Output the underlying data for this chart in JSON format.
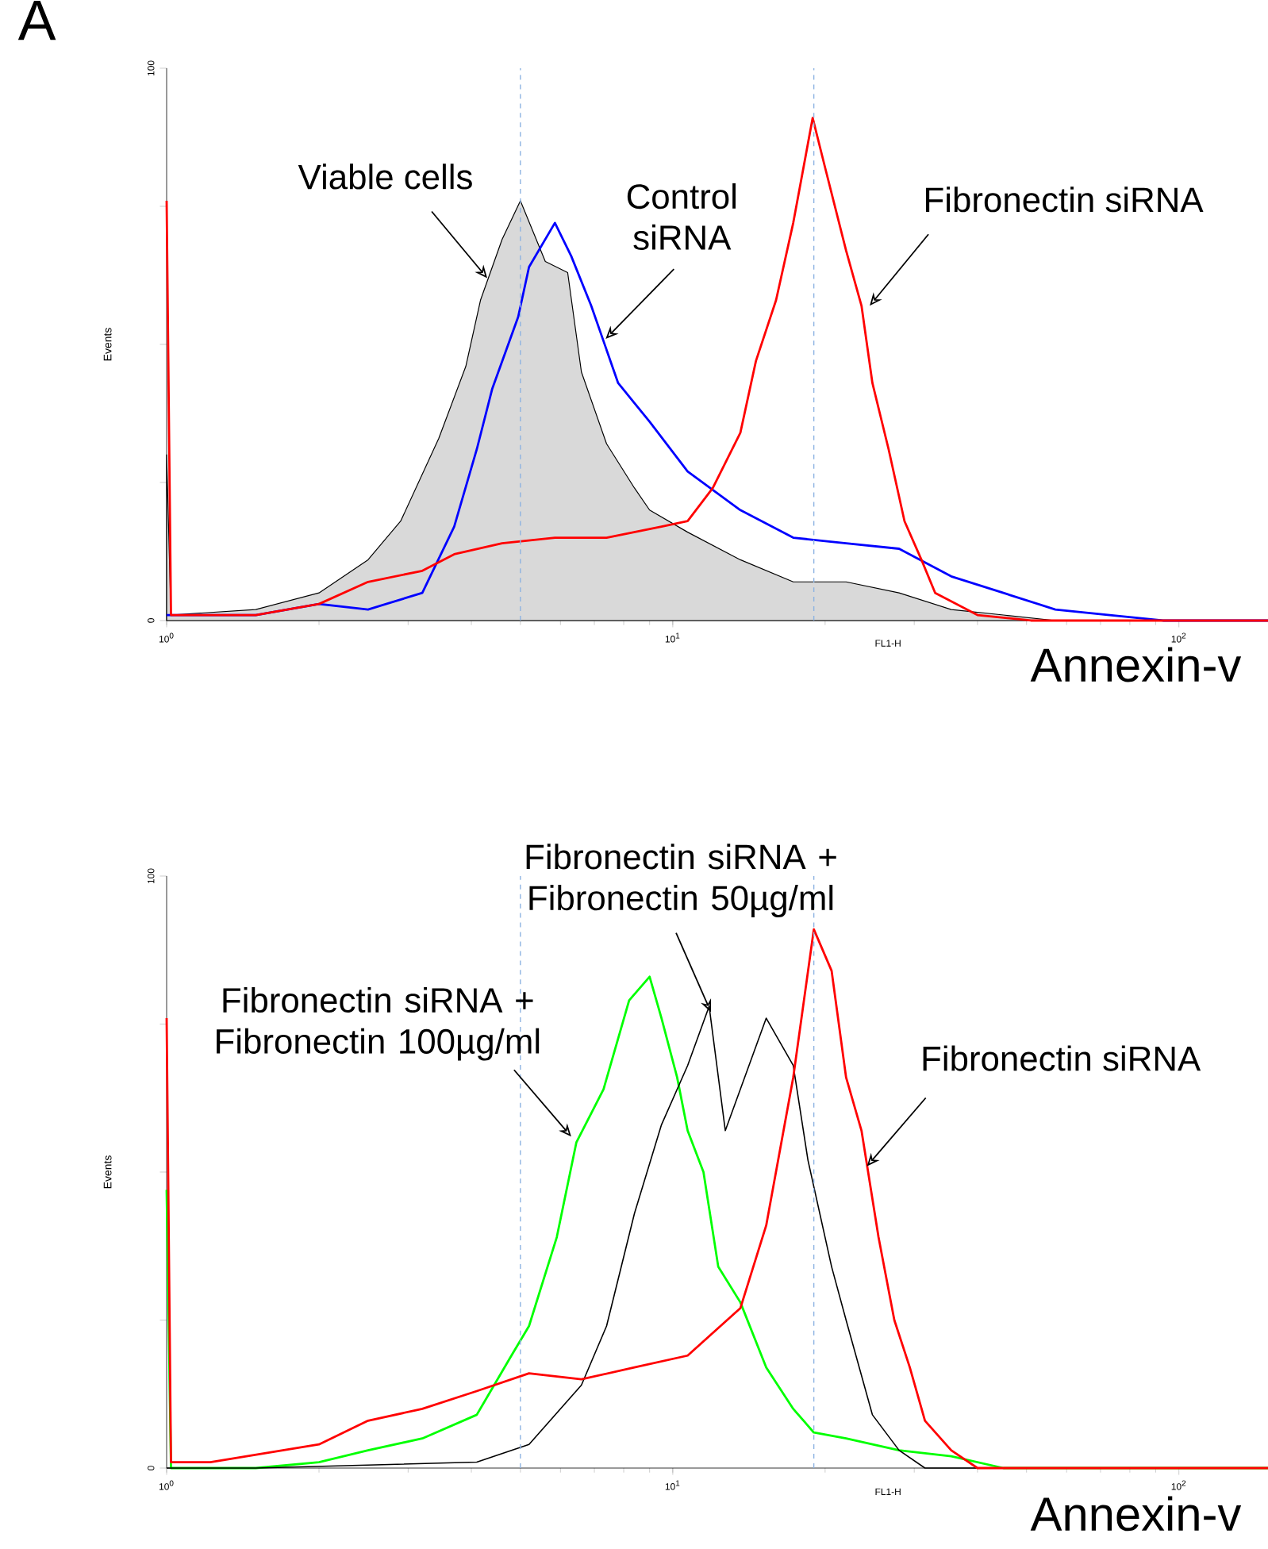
{
  "chart_data": [
    {
      "type": "line",
      "title": "A",
      "xlabel": "FL1-H",
      "ylabel": "Events",
      "log": "x",
      "xlim": [
        1,
        150
      ],
      "ylim": [
        0,
        100
      ],
      "xticks": [
        {
          "value": 1,
          "label": "10$^{0}$"
        },
        {
          "value": 10,
          "label": "10$^{1}$"
        },
        {
          "value": 100,
          "label": "10$^{2}$"
        }
      ],
      "yticks": [
        0,
        {
          "value": 25,
          "label": null
        },
        {
          "value": 50,
          "label": null
        },
        {
          "value": 75,
          "label": null
        },
        100
      ],
      "series": [
        {
          "type": "area",
          "color": "#000000",
          "x": [
            1,
            1.02,
            1.5,
            2,
            2.5,
            2.9,
            3.45,
            3.9,
            4.17,
            4.6,
            5,
            5.6,
            6.2,
            6.6,
            7.4,
            8.4,
            9,
            10.7,
            13.6,
            17.3,
            22,
            28,
            35.5,
            45,
            57,
            150
          ],
          "values": [
            30,
            1,
            2,
            5,
            11,
            18,
            33,
            46,
            58,
            69,
            76,
            65,
            63,
            45,
            32,
            24,
            20,
            16,
            11,
            7,
            7,
            5,
            2,
            1,
            0,
            0
          ]
        },
        {
          "type": "line",
          "color": "#0000ff",
          "x": [
            1,
            1.02,
            1.5,
            2,
            2.5,
            3.2,
            3.7,
            4.1,
            4.4,
            4.95,
            5.2,
            5.85,
            6.3,
            6.9,
            7.8,
            9,
            10.7,
            13.6,
            17.3,
            22,
            28,
            35.5,
            45,
            57,
            73,
            93,
            150
          ],
          "values": [
            1,
            1,
            1,
            3,
            2,
            5,
            17,
            31,
            42,
            55,
            64,
            72,
            66,
            57,
            43,
            36,
            27,
            20,
            15,
            14,
            13,
            8,
            5,
            2,
            1,
            0,
            0
          ]
        },
        {
          "type": "line",
          "color": "#ff0000",
          "x": [
            1,
            1.02,
            1.5,
            2,
            2.5,
            3.2,
            3.7,
            4.6,
            5.85,
            7.4,
            9.5,
            10.7,
            12,
            13.6,
            14.6,
            16,
            17.3,
            18.9,
            20,
            22,
            23.6,
            24.8,
            26.7,
            28.7,
            31,
            33,
            40,
            51,
            150
          ],
          "values": [
            76,
            1,
            1,
            3,
            7,
            9,
            12,
            14,
            15,
            15,
            17,
            18,
            24,
            34,
            47,
            58,
            72,
            91,
            82,
            67,
            57,
            43,
            31,
            18,
            11,
            5,
            1,
            0,
            0
          ]
        }
      ],
      "ref_lines": [
        {
          "axis": "x",
          "value": 5,
          "color": "#8db3e2",
          "line_style": "dashed"
        },
        {
          "axis": "x",
          "value": 19,
          "color": "#8db3e2",
          "line_style": "dashed"
        }
      ],
      "annotations": [
        {
          "text": "Viable cells",
          "x": 4.3,
          "y": 62
        },
        {
          "text": "Control siRNA",
          "x": 7.37,
          "y": 51
        },
        {
          "text": "Fibronectin siRNA",
          "x": 24.5,
          "y": 57
        },
        "Annexin-v"
      ]
    },
    {
      "type": "line",
      "xlabel": "FL1-H",
      "ylabel": "Events",
      "log": "x",
      "xlim": [
        1,
        150
      ],
      "ylim": [
        0,
        100
      ],
      "xticks": [
        {
          "value": 1,
          "label": "10$^{0}$"
        },
        {
          "value": 10,
          "label": "10$^{1}$"
        },
        {
          "value": 100,
          "label": "10$^{2}$"
        }
      ],
      "yticks": [
        0,
        {
          "value": 25,
          "label": null
        },
        {
          "value": 50,
          "label": null
        },
        {
          "value": 75,
          "label": null
        },
        100
      ],
      "series": [
        {
          "color": "#00ff00",
          "x": [
            1,
            1.02,
            1.5,
            2,
            2.5,
            3.2,
            4.1,
            4.8,
            5.2,
            5.9,
            6.45,
            7.3,
            8.2,
            9,
            9.5,
            10.2,
            10.7,
            11.5,
            12.3,
            13.6,
            15.3,
            17.3,
            19,
            22,
            28,
            35.5,
            45,
            150
          ],
          "values": [
            47,
            0,
            0,
            1,
            3,
            5,
            9,
            19,
            24,
            39,
            55,
            64,
            79,
            83,
            76,
            66,
            57,
            50,
            34,
            28,
            17,
            10,
            6,
            5,
            3,
            2,
            0,
            0
          ]
        },
        {
          "color": "#000000",
          "x": [
            1,
            1.5,
            4.1,
            5.2,
            6.6,
            7.4,
            8.4,
            9.5,
            10.7,
            11.8,
            12.7,
            15.3,
            17.3,
            18.5,
            20.6,
            22,
            24.8,
            28,
            31.5,
            150
          ],
          "values": [
            0,
            0,
            1,
            4,
            14,
            24,
            43,
            58,
            68,
            78,
            57,
            76,
            68,
            52,
            34,
            25,
            9,
            3,
            0,
            0
          ]
        },
        {
          "color": "#ff0000",
          "x": [
            1,
            1.02,
            1.22,
            2,
            2.5,
            3.2,
            4.1,
            5.2,
            6.6,
            8.4,
            10.7,
            13.6,
            15.3,
            17.3,
            19,
            20.6,
            22,
            23.6,
            25.5,
            27.4,
            29.4,
            31.5,
            35.5,
            40,
            150
          ],
          "values": [
            76,
            1,
            1,
            4,
            8,
            10,
            13,
            16,
            15,
            17,
            19,
            27,
            41,
            66,
            91,
            84,
            66,
            57,
            39,
            25,
            17,
            8,
            3,
            0,
            0
          ]
        }
      ],
      "ref_lines": [
        {
          "axis": "x",
          "value": 5,
          "color": "#8db3e2",
          "line_style": "dashed"
        },
        {
          "axis": "x",
          "value": 19,
          "color": "#8db3e2",
          "line_style": "dashed"
        }
      ],
      "annotations": [
        {
          "text": "Fibronectin siRNA + Fibronectin 50µg/ml",
          "x": 11.9,
          "y": 77
        },
        {
          "text": "Fibronectin siRNA + Fibronectin 100µg/ml",
          "x": 6.3,
          "y": 56
        },
        {
          "text": "Fibronectin siRNA",
          "x": 24.2,
          "y": 51
        },
        "Annexin-v"
      ]
    }
  ]
}
